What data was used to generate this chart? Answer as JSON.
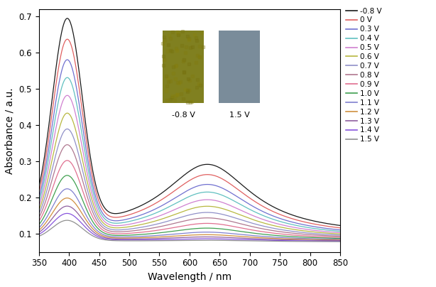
{
  "voltages": [
    "-0.8 V",
    "0 V",
    "0.3 V",
    "0.4 V",
    "0.5 V",
    "0.6 V",
    "0.7 V",
    "0.8 V",
    "0.9 V",
    "1.0 V",
    "1.1 V",
    "1.2 V",
    "1.3 V",
    "1.4 V",
    "1.5 V"
  ],
  "colors": [
    "#1a1a1a",
    "#e06060",
    "#7070d0",
    "#60c0c0",
    "#d080d0",
    "#b8b840",
    "#9090c8",
    "#b07890",
    "#e07090",
    "#40a050",
    "#8080d0",
    "#d09040",
    "#9060a0",
    "#8855dd",
    "#909090"
  ],
  "xlabel": "Wavelength / nm",
  "ylabel": "Absorbance / a.u.",
  "xlim": [
    350,
    850
  ],
  "ylim": [
    0.05,
    0.72
  ],
  "yticks": [
    0.1,
    0.2,
    0.3,
    0.4,
    0.5,
    0.6,
    0.7
  ],
  "xticks": [
    350,
    400,
    450,
    500,
    550,
    600,
    650,
    700,
    750,
    800,
    850
  ],
  "color_neg": "#808020",
  "color_pos": "#7a8a96",
  "inset_label_neg": "-0.8 V",
  "inset_label_pos": "1.5 V"
}
